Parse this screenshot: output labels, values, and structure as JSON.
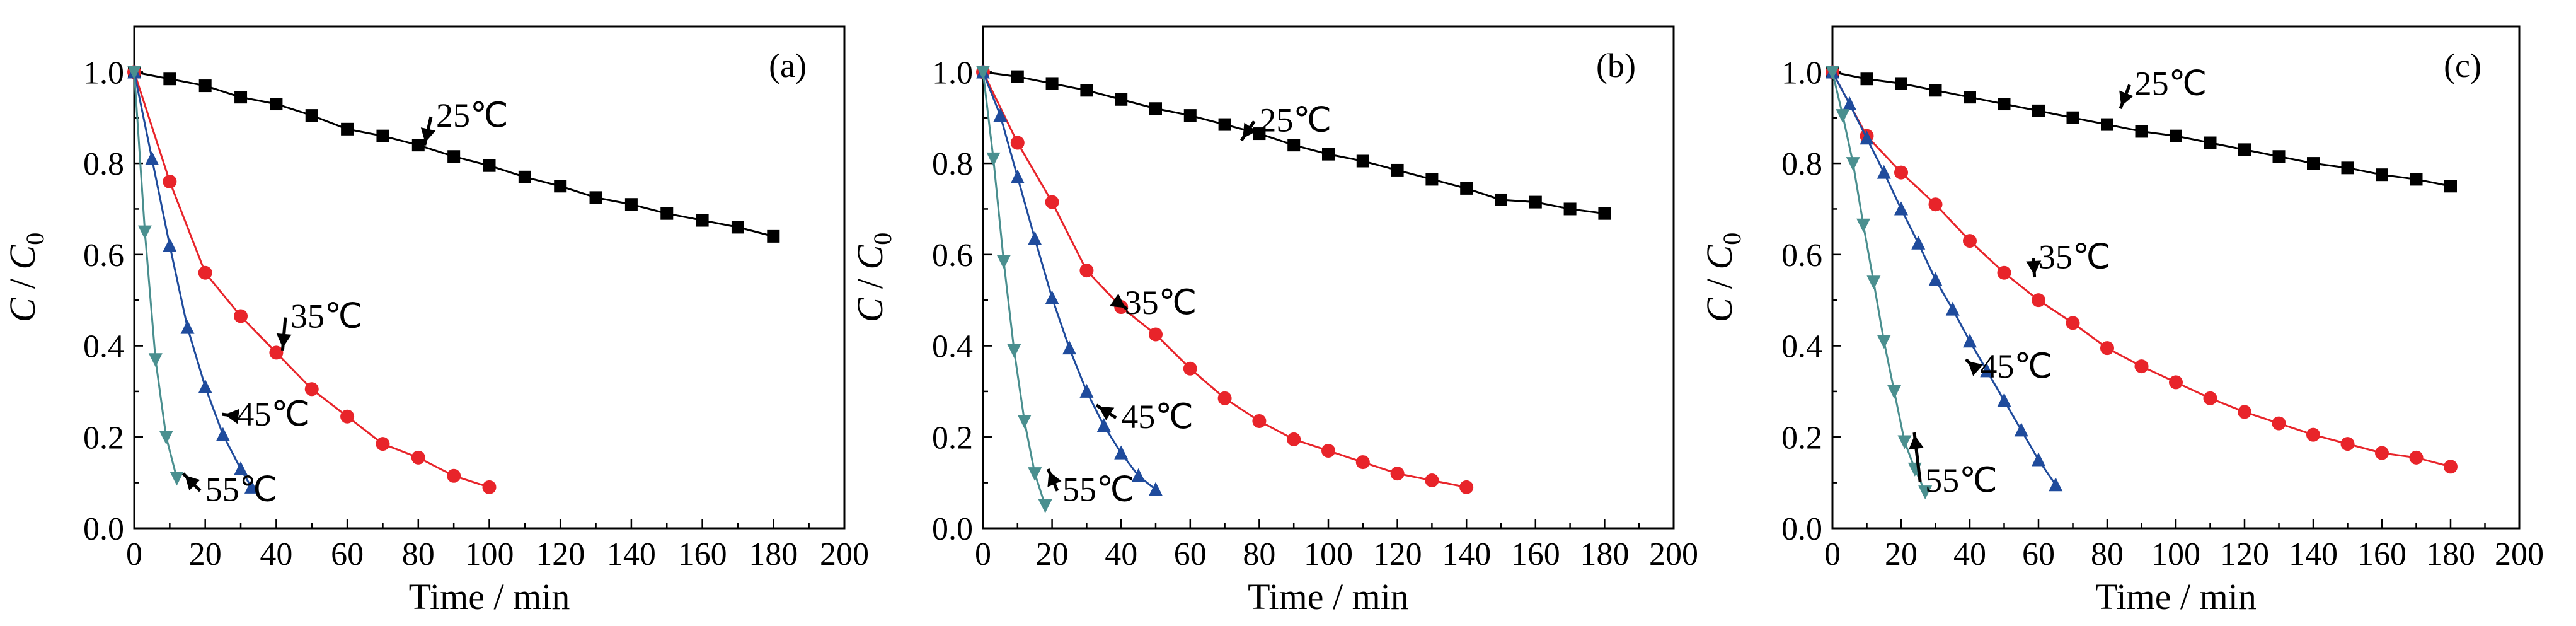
{
  "chart_data": [
    {
      "type": "line",
      "panel_label": "(a)",
      "xlabel": "Time / min",
      "ylabel": [
        "C",
        " / ",
        "C",
        "0"
      ],
      "xlim": [
        0,
        200
      ],
      "ylim": [
        0,
        1.1
      ],
      "xticks": [
        0,
        20,
        40,
        60,
        80,
        100,
        120,
        140,
        160,
        180,
        200
      ],
      "yticks": [
        "0.0",
        "0.2",
        "0.4",
        "0.6",
        "0.8",
        "1.0"
      ],
      "series": [
        {
          "name": "25℃",
          "color": "#000000",
          "marker": "square",
          "x": [
            0,
            10,
            20,
            30,
            40,
            50,
            60,
            70,
            80,
            90,
            100,
            110,
            120,
            130,
            140,
            150,
            160,
            170,
            180
          ],
          "y": [
            1.0,
            0.985,
            0.97,
            0.945,
            0.93,
            0.905,
            0.875,
            0.86,
            0.84,
            0.815,
            0.795,
            0.77,
            0.75,
            0.725,
            0.71,
            0.69,
            0.675,
            0.66,
            0.64
          ]
        },
        {
          "name": "35℃",
          "color": "#e8242a",
          "marker": "circle",
          "x": [
            0,
            10,
            20,
            30,
            40,
            50,
            60,
            70,
            80,
            90,
            100
          ],
          "y": [
            1.0,
            0.76,
            0.56,
            0.465,
            0.385,
            0.305,
            0.245,
            0.185,
            0.155,
            0.115,
            0.09
          ]
        },
        {
          "name": "45℃",
          "color": "#1f4b9c",
          "marker": "triangle-up",
          "x": [
            0,
            5,
            10,
            15,
            20,
            25,
            30,
            33
          ],
          "y": [
            1.0,
            0.81,
            0.62,
            0.44,
            0.31,
            0.205,
            0.13,
            0.09
          ]
        },
        {
          "name": "55℃",
          "color": "#4a8f8f",
          "marker": "triangle-down",
          "x": [
            0,
            3,
            6,
            9,
            12
          ],
          "y": [
            1.0,
            0.65,
            0.37,
            0.2,
            0.11
          ]
        }
      ]
    },
    {
      "type": "line",
      "panel_label": "(b)",
      "xlabel": "Time / min",
      "ylabel": [
        "C",
        " / ",
        "C",
        "0"
      ],
      "xlim": [
        0,
        200
      ],
      "ylim": [
        0,
        1.1
      ],
      "xticks": [
        0,
        20,
        40,
        60,
        80,
        100,
        120,
        140,
        160,
        180,
        200
      ],
      "yticks": [
        "0.0",
        "0.2",
        "0.4",
        "0.6",
        "0.8",
        "1.0"
      ],
      "series": [
        {
          "name": "25℃",
          "color": "#000000",
          "marker": "square",
          "x": [
            0,
            10,
            20,
            30,
            40,
            50,
            60,
            70,
            80,
            90,
            100,
            110,
            120,
            130,
            140,
            150,
            160,
            170,
            180
          ],
          "y": [
            1.0,
            0.99,
            0.975,
            0.96,
            0.94,
            0.92,
            0.905,
            0.885,
            0.865,
            0.84,
            0.82,
            0.805,
            0.785,
            0.765,
            0.745,
            0.72,
            0.715,
            0.7,
            0.69
          ]
        },
        {
          "name": "35℃",
          "color": "#e8242a",
          "marker": "circle",
          "x": [
            0,
            10,
            20,
            30,
            40,
            50,
            60,
            70,
            80,
            90,
            100,
            110,
            120,
            130,
            140
          ],
          "y": [
            1.0,
            0.845,
            0.715,
            0.565,
            0.485,
            0.425,
            0.35,
            0.285,
            0.235,
            0.195,
            0.17,
            0.145,
            0.12,
            0.105,
            0.09
          ]
        },
        {
          "name": "45℃",
          "color": "#1f4b9c",
          "marker": "triangle-up",
          "x": [
            0,
            5,
            10,
            15,
            20,
            25,
            30,
            35,
            40,
            45,
            50
          ],
          "y": [
            1.0,
            0.905,
            0.77,
            0.635,
            0.505,
            0.395,
            0.3,
            0.225,
            0.165,
            0.115,
            0.085
          ]
        },
        {
          "name": "55℃",
          "color": "#4a8f8f",
          "marker": "triangle-down",
          "x": [
            0,
            3,
            6,
            9,
            12,
            15,
            18
          ],
          "y": [
            1.0,
            0.81,
            0.585,
            0.39,
            0.235,
            0.12,
            0.05
          ]
        }
      ]
    },
    {
      "type": "line",
      "panel_label": "(c)",
      "xlabel": "Time / min",
      "ylabel": [
        "C",
        " / ",
        "C",
        "0"
      ],
      "xlim": [
        0,
        200
      ],
      "ylim": [
        0,
        1.1
      ],
      "xticks": [
        0,
        20,
        40,
        60,
        80,
        100,
        120,
        140,
        160,
        180,
        200
      ],
      "yticks": [
        "0.0",
        "0.2",
        "0.4",
        "0.6",
        "0.8",
        "1.0"
      ],
      "series": [
        {
          "name": "25℃",
          "color": "#000000",
          "marker": "square",
          "x": [
            0,
            10,
            20,
            30,
            40,
            50,
            60,
            70,
            80,
            90,
            100,
            110,
            120,
            130,
            140,
            150,
            160,
            170,
            180
          ],
          "y": [
            1.0,
            0.985,
            0.975,
            0.96,
            0.945,
            0.93,
            0.915,
            0.9,
            0.885,
            0.87,
            0.86,
            0.845,
            0.83,
            0.815,
            0.8,
            0.79,
            0.775,
            0.765,
            0.75
          ]
        },
        {
          "name": "35℃",
          "color": "#e8242a",
          "marker": "circle",
          "x": [
            0,
            10,
            20,
            30,
            40,
            50,
            60,
            70,
            80,
            90,
            100,
            110,
            120,
            130,
            140,
            150,
            160,
            170,
            180
          ],
          "y": [
            1.0,
            0.86,
            0.78,
            0.71,
            0.63,
            0.56,
            0.5,
            0.45,
            0.395,
            0.355,
            0.32,
            0.285,
            0.255,
            0.23,
            0.205,
            0.185,
            0.165,
            0.155,
            0.135
          ]
        },
        {
          "name": "45℃",
          "color": "#1f4b9c",
          "marker": "triangle-up",
          "x": [
            0,
            5,
            10,
            15,
            20,
            25,
            30,
            35,
            40,
            45,
            50,
            55,
            60,
            65
          ],
          "y": [
            1.0,
            0.93,
            0.855,
            0.78,
            0.7,
            0.625,
            0.545,
            0.48,
            0.41,
            0.345,
            0.28,
            0.215,
            0.15,
            0.095
          ]
        },
        {
          "name": "55℃",
          "color": "#4a8f8f",
          "marker": "triangle-down",
          "x": [
            0,
            3,
            6,
            9,
            12,
            15,
            18,
            21,
            24,
            27
          ],
          "y": [
            1.0,
            0.905,
            0.8,
            0.665,
            0.54,
            0.41,
            0.3,
            0.19,
            0.13,
            0.08
          ]
        }
      ]
    }
  ]
}
